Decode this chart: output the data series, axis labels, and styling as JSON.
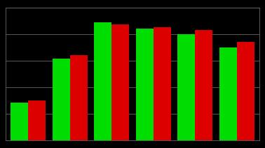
{
  "groups": 6,
  "green_values": [
    2.0,
    4.3,
    6.2,
    5.9,
    5.6,
    4.9
  ],
  "red_values": [
    2.1,
    4.5,
    6.1,
    5.95,
    5.8,
    5.2
  ],
  "green_color": "#00dd00",
  "red_color": "#dd0000",
  "background_color": "#000000",
  "grid_color": "#666666",
  "ylim": [
    0,
    7.0
  ],
  "yticks": [
    0,
    1.4,
    2.8,
    4.2,
    5.6,
    7.0
  ],
  "bar_width": 0.42,
  "group_positions": [
    0,
    1,
    2,
    3,
    4,
    5
  ],
  "xlim_left": -0.55,
  "xlim_right": 5.55
}
